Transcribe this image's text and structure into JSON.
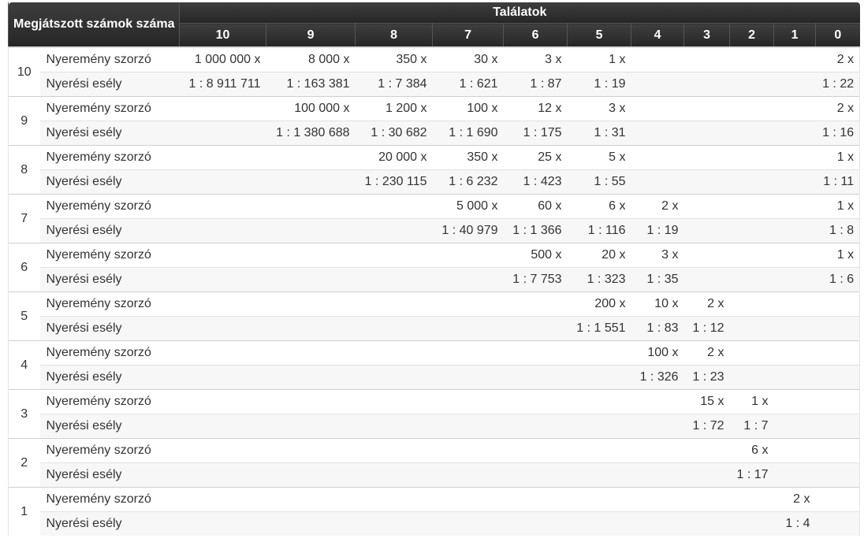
{
  "table": {
    "header_left": "Megjátszott számok száma",
    "header_top": "Találatok",
    "columns": [
      "10",
      "9",
      "8",
      "7",
      "6",
      "5",
      "4",
      "3",
      "2",
      "1",
      "0"
    ],
    "groups": [
      {
        "played": "10",
        "rows": [
          {
            "label": "Nyeremény szorzó",
            "values": [
              "1 000 000 x",
              "8 000 x",
              "350 x",
              "30 x",
              "3 x",
              "1 x",
              "",
              "",
              "",
              "",
              "2 x"
            ]
          },
          {
            "label": "Nyerési esély",
            "values": [
              "1 : 8 911 711",
              "1 : 163 381",
              "1 : 7 384",
              "1 : 621",
              "1 : 87",
              "1 : 19",
              "",
              "",
              "",
              "",
              "1 : 22"
            ]
          }
        ]
      },
      {
        "played": "9",
        "rows": [
          {
            "label": "Nyeremény szorzó",
            "values": [
              "",
              "100 000 x",
              "1 200 x",
              "100 x",
              "12 x",
              "3 x",
              "",
              "",
              "",
              "",
              "2 x"
            ]
          },
          {
            "label": "Nyerési esély",
            "values": [
              "",
              "1 : 1 380 688",
              "1 : 30 682",
              "1 : 1 690",
              "1 : 175",
              "1 : 31",
              "",
              "",
              "",
              "",
              "1 : 16"
            ]
          }
        ]
      },
      {
        "played": "8",
        "rows": [
          {
            "label": "Nyeremény szorzó",
            "values": [
              "",
              "",
              "20 000 x",
              "350 x",
              "25 x",
              "5 x",
              "",
              "",
              "",
              "",
              "1 x"
            ]
          },
          {
            "label": "Nyerési esély",
            "values": [
              "",
              "",
              "1 : 230 115",
              "1 : 6 232",
              "1 : 423",
              "1 : 55",
              "",
              "",
              "",
              "",
              "1 : 11"
            ]
          }
        ]
      },
      {
        "played": "7",
        "rows": [
          {
            "label": "Nyeremény szorzó",
            "values": [
              "",
              "",
              "",
              "5 000 x",
              "60 x",
              "6 x",
              "2 x",
              "",
              "",
              "",
              "1 x"
            ]
          },
          {
            "label": "Nyerési esély",
            "values": [
              "",
              "",
              "",
              "1 : 40 979",
              "1 : 1 366",
              "1 : 116",
              "1 : 19",
              "",
              "",
              "",
              "1 : 8"
            ]
          }
        ]
      },
      {
        "played": "6",
        "rows": [
          {
            "label": "Nyeremény szorzó",
            "values": [
              "",
              "",
              "",
              "",
              "500 x",
              "20 x",
              "3 x",
              "",
              "",
              "",
              "1 x"
            ]
          },
          {
            "label": "Nyerési esély",
            "values": [
              "",
              "",
              "",
              "",
              "1 : 7 753",
              "1 : 323",
              "1 : 35",
              "",
              "",
              "",
              "1 : 6"
            ]
          }
        ]
      },
      {
        "played": "5",
        "rows": [
          {
            "label": "Nyeremény szorzó",
            "values": [
              "",
              "",
              "",
              "",
              "",
              "200 x",
              "10 x",
              "2 x",
              "",
              "",
              ""
            ]
          },
          {
            "label": "Nyerési esély",
            "values": [
              "",
              "",
              "",
              "",
              "",
              "1 : 1 551",
              "1 : 83",
              "1 : 12",
              "",
              "",
              ""
            ]
          }
        ]
      },
      {
        "played": "4",
        "rows": [
          {
            "label": "Nyeremény szorzó",
            "values": [
              "",
              "",
              "",
              "",
              "",
              "",
              "100 x",
              "2 x",
              "",
              "",
              ""
            ]
          },
          {
            "label": "Nyerési esély",
            "values": [
              "",
              "",
              "",
              "",
              "",
              "",
              "1 : 326",
              "1 : 23",
              "",
              "",
              ""
            ]
          }
        ]
      },
      {
        "played": "3",
        "rows": [
          {
            "label": "Nyeremény szorzó",
            "values": [
              "",
              "",
              "",
              "",
              "",
              "",
              "",
              "15 x",
              "1 x",
              "",
              ""
            ]
          },
          {
            "label": "Nyerési esély",
            "values": [
              "",
              "",
              "",
              "",
              "",
              "",
              "",
              "1 : 72",
              "1 : 7",
              "",
              ""
            ]
          }
        ]
      },
      {
        "played": "2",
        "rows": [
          {
            "label": "Nyeremény szorzó",
            "values": [
              "",
              "",
              "",
              "",
              "",
              "",
              "",
              "",
              "6 x",
              "",
              ""
            ]
          },
          {
            "label": "Nyerési esély",
            "values": [
              "",
              "",
              "",
              "",
              "",
              "",
              "",
              "",
              "1 : 17",
              "",
              ""
            ]
          }
        ]
      },
      {
        "played": "1",
        "rows": [
          {
            "label": "Nyeremény szorzó",
            "values": [
              "",
              "",
              "",
              "",
              "",
              "",
              "",
              "",
              "",
              "2 x",
              ""
            ]
          },
          {
            "label": "Nyerési esély",
            "values": [
              "",
              "",
              "",
              "",
              "",
              "",
              "",
              "",
              "",
              "1 : 4",
              ""
            ]
          }
        ]
      }
    ]
  }
}
